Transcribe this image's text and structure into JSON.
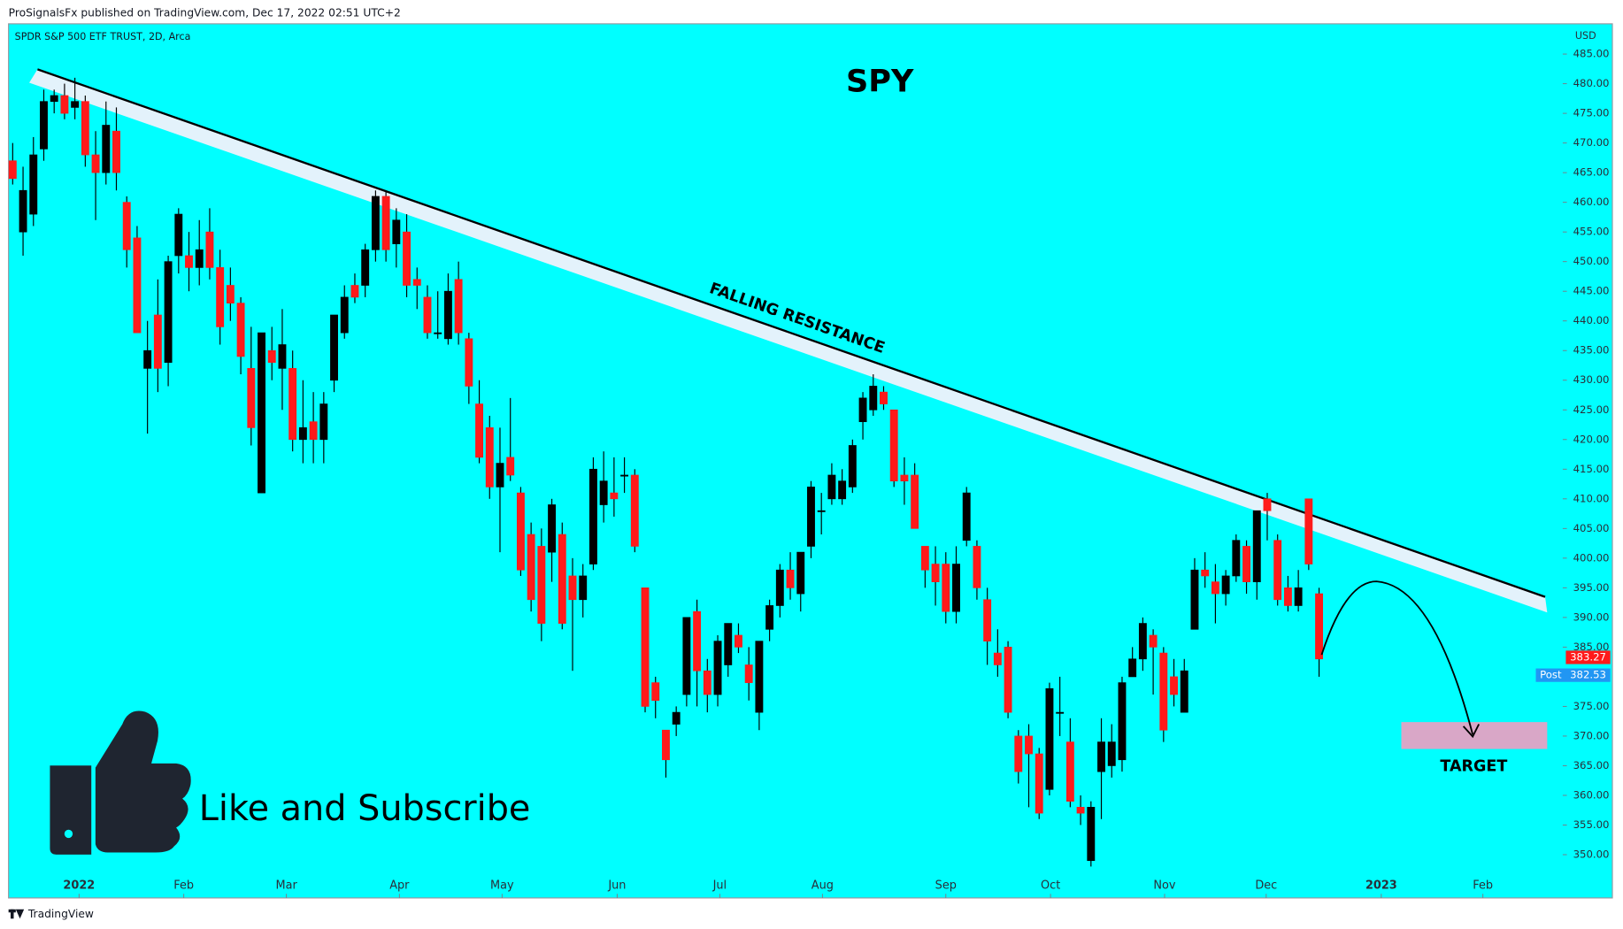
{
  "header": "ProSignalsFx published on TradingView.com, Dec 17, 2022 02:51 UTC+2",
  "footer": "TradingView",
  "chart_data": {
    "type": "candlestick",
    "title": "SPY",
    "subtitle": "SPDR S&P 500 ETF TRUST, 2D, Arca",
    "currency": "USD",
    "annotations": {
      "trend": "FALLING RESISTANCE",
      "target": "TARGET",
      "cta": "Like and Subscribe"
    },
    "open": [
      467,
      455,
      458,
      469,
      477,
      478,
      476,
      477,
      468,
      465,
      472,
      460,
      454,
      432,
      441,
      433,
      451,
      451,
      449,
      455,
      449,
      446,
      443,
      432,
      411,
      435,
      432,
      432,
      420,
      423,
      420,
      430,
      438,
      446,
      446,
      452,
      461,
      453,
      455,
      447,
      444,
      438,
      437,
      447,
      437,
      426,
      422,
      412,
      417,
      411,
      404,
      402,
      401,
      404,
      397,
      393,
      399,
      409,
      411,
      414,
      414,
      395,
      379,
      371,
      372,
      377,
      391,
      381,
      377,
      382,
      387,
      382,
      374,
      388,
      392,
      398,
      394,
      402,
      408,
      410,
      410,
      412,
      423,
      425,
      428,
      425,
      414,
      414,
      402,
      399,
      399,
      391,
      403,
      402,
      393,
      384,
      385,
      370,
      370,
      367,
      361,
      374,
      369,
      358,
      349,
      364,
      365,
      366,
      380,
      383,
      387,
      384,
      380,
      374,
      388,
      398,
      396,
      394,
      397,
      402,
      396,
      410,
      403,
      395,
      392,
      410,
      394
    ],
    "high": [
      470,
      466,
      471,
      479,
      479,
      480,
      481,
      478,
      472,
      477,
      476,
      461,
      456,
      440,
      447,
      451,
      459,
      455,
      457,
      459,
      452,
      449,
      444,
      439,
      438,
      439,
      442,
      435,
      430,
      428,
      428,
      441,
      446,
      448,
      453,
      462,
      462,
      459,
      458,
      449,
      446,
      445,
      448,
      450,
      438,
      430,
      424,
      422,
      427,
      412,
      406,
      405,
      410,
      406,
      400,
      399,
      417,
      418,
      417,
      417,
      415,
      395,
      380,
      371,
      375,
      390,
      393,
      383,
      387,
      389,
      389,
      385,
      386,
      393,
      399,
      401,
      401,
      413,
      411,
      416,
      415,
      420,
      428,
      431,
      429,
      425,
      417,
      416,
      402,
      402,
      401,
      402,
      412,
      403,
      395,
      388,
      386,
      371,
      372,
      368,
      379,
      380,
      373,
      360,
      359,
      373,
      372,
      380,
      385,
      390,
      388,
      385,
      383,
      383,
      400,
      401,
      399,
      398,
      404,
      403,
      408,
      411,
      404,
      397,
      398,
      410,
      395
    ],
    "low": [
      463,
      451,
      456,
      467,
      475,
      474,
      474,
      466,
      457,
      463,
      462,
      449,
      438,
      421,
      428,
      429,
      448,
      445,
      446,
      447,
      436,
      440,
      431,
      419,
      411,
      430,
      425,
      418,
      416,
      416,
      416,
      428,
      437,
      443,
      444,
      450,
      450,
      449,
      444,
      442,
      437,
      437,
      436,
      436,
      426,
      416,
      410,
      401,
      413,
      397,
      391,
      386,
      396,
      388,
      381,
      390,
      398,
      406,
      407,
      411,
      401,
      374,
      373,
      363,
      370,
      375,
      375,
      374,
      375,
      380,
      384,
      376,
      371,
      386,
      390,
      393,
      391,
      400,
      404,
      409,
      409,
      411,
      420,
      424,
      425,
      412,
      409,
      405,
      395,
      392,
      389,
      389,
      402,
      393,
      382,
      380,
      373,
      362,
      358,
      356,
      360,
      370,
      358,
      355,
      348,
      356,
      363,
      364,
      380,
      381,
      377,
      369,
      375,
      374,
      388,
      395,
      389,
      392,
      396,
      394,
      393,
      403,
      392,
      391,
      391,
      398,
      380
    ],
    "close": [
      464,
      462,
      468,
      477,
      478,
      475,
      477,
      468,
      465,
      473,
      465,
      452,
      438,
      435,
      432,
      450,
      458,
      449,
      452,
      449,
      439,
      443,
      434,
      422,
      438,
      433,
      436,
      420,
      422,
      420,
      426,
      441,
      444,
      444,
      452,
      461,
      452,
      457,
      446,
      446,
      438,
      438,
      445,
      438,
      429,
      417,
      412,
      416,
      414,
      398,
      393,
      389,
      409,
      389,
      393,
      397,
      415,
      413,
      410,
      414,
      402,
      375,
      376,
      366,
      374,
      390,
      381,
      377,
      386,
      389,
      385,
      379,
      386,
      392,
      398,
      395,
      401,
      412,
      408,
      414,
      413,
      419,
      427,
      429,
      426,
      413,
      413,
      405,
      398,
      396,
      391,
      399,
      411,
      395,
      386,
      382,
      374,
      364,
      367,
      357,
      378,
      374,
      359,
      357,
      358,
      369,
      369,
      379,
      383,
      389,
      385,
      371,
      377,
      381,
      398,
      397,
      394,
      397,
      403,
      396,
      408,
      408,
      393,
      392,
      395,
      399,
      383
    ],
    "xlim": [
      -0.4,
      149.3
    ],
    "xticks": [
      {
        "value": 6.4,
        "label": "2022"
      },
      {
        "value": 16.5,
        "label": "Feb"
      },
      {
        "value": 26.4,
        "label": "Mar"
      },
      {
        "value": 37.3,
        "label": "Apr"
      },
      {
        "value": 47.2,
        "label": "May"
      },
      {
        "value": 58.3,
        "label": "Jun"
      },
      {
        "value": 68.2,
        "label": "Jul"
      },
      {
        "value": 78.1,
        "label": "Aug"
      },
      {
        "value": 90.0,
        "label": "Sep"
      },
      {
        "value": 100.1,
        "label": "Oct"
      },
      {
        "value": 111.1,
        "label": "Nov"
      },
      {
        "value": 120.9,
        "label": "Dec"
      },
      {
        "value": 132.0,
        "label": "2023"
      },
      {
        "value": 141.8,
        "label": "Feb"
      }
    ],
    "ylim": [
      342.7,
      490.1
    ],
    "yticks": [
      {
        "value": 350,
        "label": "350.00"
      },
      {
        "value": 355,
        "label": "355.00"
      },
      {
        "value": 360,
        "label": "360.00"
      },
      {
        "value": 365,
        "label": "365.00"
      },
      {
        "value": 370,
        "label": "370.00"
      },
      {
        "value": 375,
        "label": "375.00"
      },
      {
        "value": 380,
        "label": "380.00"
      },
      {
        "value": 385,
        "label": "385.00"
      },
      {
        "value": 390,
        "label": "390.00"
      },
      {
        "value": 395,
        "label": "395.00"
      },
      {
        "value": 400,
        "label": "400.00"
      },
      {
        "value": 405,
        "label": "405.00"
      },
      {
        "value": 410,
        "label": "410.00"
      },
      {
        "value": 415,
        "label": "415.00"
      },
      {
        "value": 420,
        "label": "420.00"
      },
      {
        "value": 425,
        "label": "425.00"
      },
      {
        "value": 430,
        "label": "430.00"
      },
      {
        "value": 435,
        "label": "435.00"
      },
      {
        "value": 440,
        "label": "440.00"
      },
      {
        "value": 445,
        "label": "445.00"
      },
      {
        "value": 450,
        "label": "450.00"
      },
      {
        "value": 455,
        "label": "455.00"
      },
      {
        "value": 460,
        "label": "460.00"
      },
      {
        "value": 465,
        "label": "465.00"
      },
      {
        "value": 470,
        "label": "470.00"
      },
      {
        "value": 475,
        "label": "475.00"
      },
      {
        "value": 480,
        "label": "480.00"
      },
      {
        "value": 485,
        "label": "485.00"
      }
    ],
    "up_color": "#000000",
    "down_color": "#ff1a1a",
    "background": "#00ffff",
    "last_price": 383.27,
    "last_color": "#ff1a1a",
    "post_label": "Post",
    "post_price": 382.53,
    "post_color": "#2196f3"
  }
}
